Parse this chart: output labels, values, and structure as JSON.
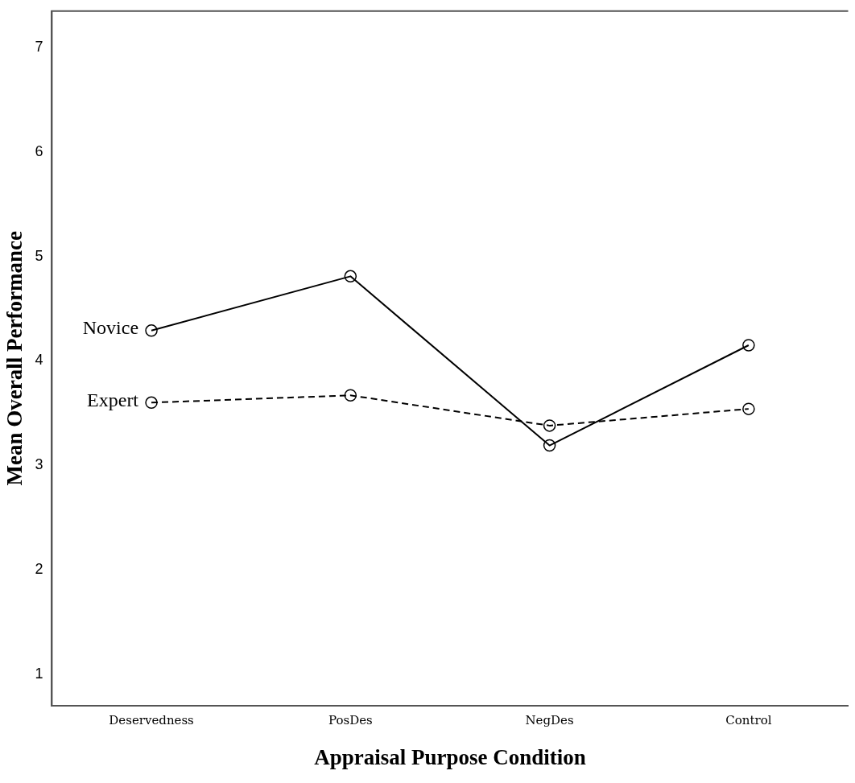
{
  "chart_data": {
    "type": "line",
    "xlabel": "Appraisal Purpose Condition",
    "ylabel": "Mean Overall Performance",
    "categories": [
      "Deservedness",
      "PosDes",
      "NegDes",
      "Control"
    ],
    "series": [
      {
        "name": "Novice",
        "color": "#000000",
        "line_style": "solid",
        "values": [
          4.29,
          4.81,
          3.19,
          4.15
        ]
      },
      {
        "name": "Expert",
        "color": "#000000",
        "line_style": "dashed",
        "values": [
          3.6,
          3.67,
          3.38,
          3.54
        ]
      }
    ],
    "ylim": [
      0.7,
      7.35
    ],
    "yticks": [
      1,
      2,
      3,
      4,
      5,
      6,
      7
    ],
    "marker": "circle",
    "grid": false,
    "legend": false
  }
}
